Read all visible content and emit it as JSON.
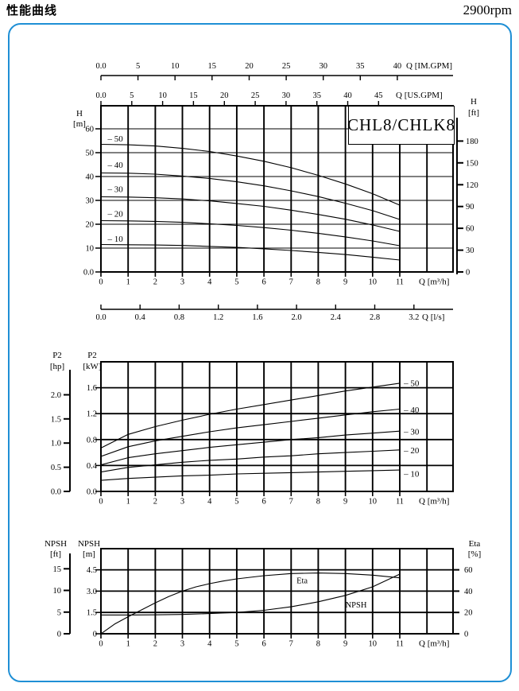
{
  "page": {
    "title": "性能曲线",
    "rpm": "2900rpm",
    "model": "CHL8/CHLK8"
  },
  "chart_data": [
    {
      "id": "head-chart",
      "type": "line",
      "title": "CHL8/CHLK8",
      "xlabel": "Q [m³/h]",
      "ylabel": "H [m]",
      "xlim": [
        0,
        13
      ],
      "ylim": [
        0,
        70
      ],
      "grid": "on",
      "x": [
        0,
        1,
        2,
        3,
        4,
        5,
        6,
        7,
        8,
        9,
        10,
        11
      ],
      "xtick_labels": [
        "0",
        "1",
        "2",
        "3",
        "4",
        "5",
        "6",
        "7",
        "8",
        "9",
        "10",
        "11"
      ],
      "yticks": [
        0,
        10,
        20,
        30,
        40,
        50,
        60
      ],
      "ytick_labels": [
        "0.0",
        "10",
        "20",
        "30",
        "40",
        "50",
        "60"
      ],
      "left_header": [
        "H",
        "[m]"
      ],
      "series": [
        {
          "name": "50",
          "label": "– 50",
          "label_pos": [
            0.25,
            55.8
          ],
          "values": [
            53.5,
            53.3,
            52.8,
            51.8,
            50.5,
            48.6,
            46.4,
            43.7,
            40.5,
            36.9,
            32.8,
            28.0
          ]
        },
        {
          "name": "40",
          "label": "– 40",
          "label_pos": [
            0.25,
            44.9
          ],
          "values": [
            41.5,
            41.4,
            41.0,
            40.2,
            39.2,
            37.8,
            36.1,
            34.0,
            31.6,
            28.8,
            25.7,
            22.0
          ]
        },
        {
          "name": "30",
          "label": "– 30",
          "label_pos": [
            0.25,
            34.6
          ],
          "values": [
            31.5,
            31.4,
            31.1,
            30.6,
            29.8,
            28.7,
            27.5,
            25.9,
            24.1,
            22.1,
            19.7,
            17.0
          ]
        },
        {
          "name": "20",
          "label": "– 20",
          "label_pos": [
            0.25,
            24.4
          ],
          "values": [
            21.5,
            21.4,
            21.2,
            20.8,
            20.2,
            19.5,
            18.6,
            17.5,
            16.2,
            14.7,
            13.0,
            11.0
          ]
        },
        {
          "name": "10",
          "label": "– 10",
          "label_pos": [
            0.25,
            13.9
          ],
          "values": [
            11.5,
            11.4,
            11.3,
            11.1,
            10.7,
            10.3,
            9.7,
            9.0,
            8.2,
            7.3,
            6.2,
            5.0
          ]
        }
      ],
      "right_axis": {
        "header": [
          "H",
          "[ft]"
        ],
        "ticks": [
          0,
          30,
          60,
          90,
          120,
          150,
          180
        ],
        "tick_labels": [
          "0",
          "30",
          "60",
          "90",
          "120",
          "150",
          "180"
        ],
        "m_per_ft": 0.3048
      },
      "top_axis_im": {
        "label": "Q [IM.GPM]",
        "ticks": [
          0,
          5,
          10,
          15,
          20,
          25,
          30,
          35,
          40
        ],
        "tick_labels": [
          "0.0",
          "5",
          "10",
          "15",
          "20",
          "25",
          "30",
          "35",
          "40"
        ],
        "m3h_per_gpm": 0.27276
      },
      "top_axis_us": {
        "label": "Q [US.GPM]",
        "ticks": [
          0,
          5,
          10,
          15,
          20,
          25,
          30,
          35,
          40,
          45
        ],
        "tick_labels": [
          "0.0",
          "5",
          "10",
          "15",
          "20",
          "25",
          "30",
          "35",
          "40",
          "45"
        ],
        "m3h_per_gpm": 0.22712
      },
      "bottom_axis_ls": {
        "label": "Q [l/s]",
        "ticks": [
          0,
          0.4,
          0.8,
          1.2,
          1.6,
          2.0,
          2.4,
          2.8,
          3.2
        ],
        "tick_labels": [
          "0.0",
          "0.4",
          "0.8",
          "1.2",
          "1.6",
          "2.0",
          "2.4",
          "2.8",
          "3.2"
        ],
        "m3h_per_ls": 3.6
      }
    },
    {
      "id": "power-chart",
      "type": "line",
      "xlabel": "Q [m³/h]",
      "ylabel": "P2 [kW]",
      "xlim": [
        0,
        13
      ],
      "ylim": [
        0,
        2
      ],
      "grid": "on",
      "x": [
        0,
        1,
        2,
        3,
        4,
        5,
        6,
        7,
        8,
        9,
        10,
        11
      ],
      "xtick_labels": [
        "0",
        "1",
        "2",
        "3",
        "4",
        "5",
        "6",
        "7",
        "8",
        "9",
        "10",
        "11"
      ],
      "yticks": [
        0,
        0.4,
        0.8,
        1.2,
        1.6
      ],
      "ytick_labels": [
        "0.0",
        "0.4",
        "0.8",
        "1.2",
        "1.6"
      ],
      "left_header": [
        "P2",
        "[hp]"
      ],
      "inner_header": [
        "P2",
        "[kW]"
      ],
      "series": [
        {
          "name": "50",
          "label": "– 50",
          "label_pos": [
            11.15,
            1.67
          ],
          "values": [
            0.67,
            0.88,
            1.0,
            1.1,
            1.19,
            1.27,
            1.34,
            1.41,
            1.48,
            1.55,
            1.61,
            1.67
          ]
        },
        {
          "name": "40",
          "label": "– 40",
          "label_pos": [
            11.15,
            1.26
          ],
          "values": [
            0.54,
            0.69,
            0.78,
            0.85,
            0.92,
            0.98,
            1.03,
            1.08,
            1.13,
            1.18,
            1.23,
            1.27
          ]
        },
        {
          "name": "30",
          "label": "– 30",
          "label_pos": [
            11.15,
            0.92
          ],
          "values": [
            0.41,
            0.52,
            0.58,
            0.63,
            0.68,
            0.72,
            0.76,
            0.8,
            0.83,
            0.87,
            0.9,
            0.93
          ]
        },
        {
          "name": "20",
          "label": "– 20",
          "label_pos": [
            11.15,
            0.63
          ],
          "values": [
            0.3,
            0.37,
            0.41,
            0.45,
            0.48,
            0.5,
            0.53,
            0.55,
            0.58,
            0.6,
            0.62,
            0.64
          ]
        },
        {
          "name": "10",
          "label": "– 10",
          "label_pos": [
            11.15,
            0.27
          ],
          "values": [
            0.17,
            0.2,
            0.22,
            0.24,
            0.25,
            0.27,
            0.28,
            0.29,
            0.3,
            0.31,
            0.32,
            0.33
          ]
        }
      ],
      "hp_axis": {
        "ticks": [
          0,
          0.5,
          1,
          1.5,
          2
        ],
        "tick_labels": [
          "0.0",
          "0.5",
          "1.0",
          "1.5",
          "2.0"
        ],
        "kw_per_hp": 0.7457
      }
    },
    {
      "id": "npsh-eta-chart",
      "type": "line",
      "xlabel": "Q [m³/h]",
      "ylabel": "NPSH [m]",
      "xlim": [
        0,
        13
      ],
      "ylim": [
        0,
        6
      ],
      "grid": "on",
      "xtick_labels": [
        "0",
        "1",
        "2",
        "3",
        "4",
        "5",
        "6",
        "7",
        "8",
        "9",
        "10",
        "11"
      ],
      "yticks": [
        0,
        1.5,
        3,
        4.5
      ],
      "ytick_labels": [
        "0",
        "1.5",
        "3.0",
        "4.5"
      ],
      "left_header": [
        "NPSH",
        "[ft]"
      ],
      "inner_header": [
        "NPSH",
        "[m]"
      ],
      "series": [
        {
          "name": "Eta",
          "axis": "eta",
          "label": "Eta",
          "label_pos": [
            7.2,
            50
          ],
          "x": [
            0,
            0.5,
            1,
            1.5,
            2,
            2.5,
            3,
            3.5,
            4,
            4.5,
            5,
            6,
            7,
            8,
            9,
            10,
            11
          ],
          "values": [
            0,
            9,
            16,
            22.5,
            29,
            35,
            40,
            44,
            47,
            49.5,
            51.5,
            54.5,
            56.5,
            57,
            56.5,
            55,
            52.5
          ]
        },
        {
          "name": "NPSH",
          "axis": "m",
          "label": "NPSH",
          "label_pos": [
            9.0,
            2.05
          ],
          "x": [
            0,
            1,
            2,
            3,
            4,
            5,
            6,
            7,
            8,
            9,
            10,
            11
          ],
          "values": [
            1.32,
            1.32,
            1.33,
            1.36,
            1.42,
            1.5,
            1.65,
            1.9,
            2.25,
            2.7,
            3.3,
            4.2
          ]
        }
      ],
      "ft_axis": {
        "ticks": [
          0,
          5,
          10,
          15
        ],
        "tick_labels": [
          "0",
          "5",
          "10",
          "15"
        ],
        "m_per_ft": 0.3048
      },
      "eta_axis": {
        "header": [
          "Eta",
          "[%]"
        ],
        "ticks": [
          0,
          20,
          40,
          60
        ],
        "tick_labels": [
          "0",
          "20",
          "40",
          "60"
        ]
      }
    }
  ]
}
